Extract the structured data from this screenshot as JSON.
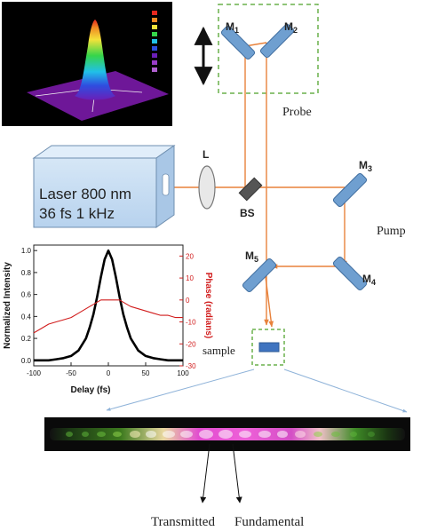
{
  "laser": {
    "line1": "Laser 800 nm",
    "line2": "36 fs 1 kHz"
  },
  "optics": {
    "lens": "L",
    "beamsplitter": "BS",
    "mirrors": [
      {
        "main": "M",
        "sub": "1"
      },
      {
        "main": "M",
        "sub": "2"
      },
      {
        "main": "M",
        "sub": "3"
      },
      {
        "main": "M",
        "sub": "4"
      },
      {
        "main": "M",
        "sub": "5"
      }
    ]
  },
  "arms": {
    "probe": "Probe",
    "pump": "Pump"
  },
  "sample_label": "sample",
  "output_labels": {
    "transmitted": "Transmitted",
    "fundamental": "Fundamental"
  },
  "colors": {
    "beam": "#e8823c",
    "mirror": "#6f9fd0",
    "dashed_box": "#6ab04c",
    "laser_box": "#c7ddf2",
    "intensity": "#000000",
    "phase": "#d11c1c"
  },
  "chart_data": {
    "type": "line",
    "x": [
      -100,
      -90,
      -80,
      -70,
      -60,
      -50,
      -40,
      -30,
      -25,
      -20,
      -15,
      -10,
      -5,
      0,
      5,
      10,
      15,
      20,
      25,
      30,
      40,
      50,
      60,
      70,
      80,
      90,
      100
    ],
    "series": [
      {
        "name": "",
        "axis": "left",
        "values": [
          0.0,
          0.0,
          0.0,
          0.01,
          0.02,
          0.04,
          0.09,
          0.2,
          0.3,
          0.42,
          0.58,
          0.76,
          0.92,
          1.0,
          0.92,
          0.76,
          0.58,
          0.42,
          0.3,
          0.2,
          0.09,
          0.04,
          0.02,
          0.01,
          0.0,
          0.0,
          0.0
        ]
      },
      {
        "name": "",
        "axis": "right",
        "values": [
          -15,
          -13,
          -11,
          -10,
          -9,
          -8,
          -6,
          -4,
          -3,
          -2,
          -1,
          0,
          0,
          0,
          0,
          0,
          0,
          -1,
          -2,
          -3,
          -4,
          -5,
          -6,
          -7,
          -7,
          -8,
          -8
        ]
      }
    ],
    "xlabel": "Delay (fs)",
    "ylabel_left": "Normalized Intensity",
    "ylabel_right": "Phase (radians)",
    "xlim": [
      -100,
      100
    ],
    "ylim_left": [
      -0.05,
      1.05
    ],
    "ylim_right": [
      -30,
      25
    ],
    "x_ticks": [
      "-100",
      "-50",
      "0",
      "50",
      "100"
    ],
    "y_ticks_left": [
      "0.0",
      "0.2",
      "0.4",
      "0.6",
      "0.8",
      "1.0"
    ],
    "y_ticks_right": [
      "20",
      "10",
      "0",
      "-10",
      "-20",
      "-30"
    ],
    "grid": false
  }
}
